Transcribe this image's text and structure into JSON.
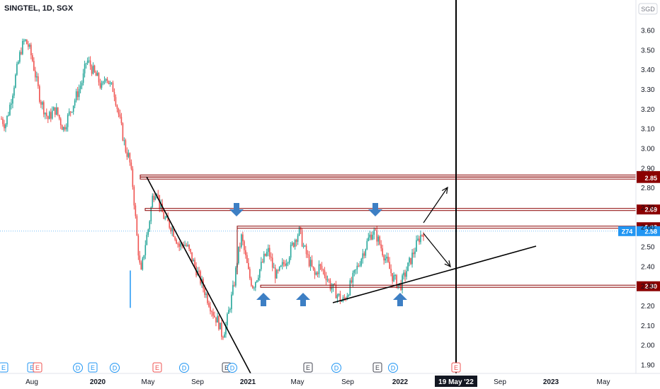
{
  "header": {
    "symbol": "SINGTEL, 1D, SGX",
    "currency": "SGD"
  },
  "colors": {
    "up": "#26a69a",
    "down": "#ef5350",
    "level": "#8b0000",
    "arrow": "#3d7fc4",
    "last": "#2196f3"
  },
  "chart_data": {
    "type": "candlestick",
    "title": "SINGTEL, 1D, SGX",
    "ylabel": "SGD",
    "ylim": [
      1.86,
      3.77
    ],
    "y_ticks": [
      3.6,
      3.5,
      3.4,
      3.3,
      3.2,
      3.1,
      3.0,
      2.9,
      2.8,
      2.7,
      2.6,
      2.5,
      2.4,
      2.3,
      2.2,
      2.1,
      2.0,
      1.9
    ],
    "y_tick_labels": [
      "3.60",
      "3.50",
      "3.40",
      "3.30",
      "3.20",
      "3.10",
      "3.00",
      "2.90",
      "2.80",
      "2.70",
      "2.60",
      "2.50",
      "2.40",
      "2.30",
      "2.20",
      "2.10",
      "2.00",
      "1.90"
    ],
    "x_ticks": [
      "Aug",
      "2020",
      "May",
      "Sep",
      "2021",
      "May",
      "Sep",
      "2022",
      "19 May '22",
      "Sep",
      "2023",
      "May"
    ],
    "x_range": [
      "2019-06",
      "2023-07"
    ],
    "closes": [
      3.15,
      3.12,
      3.2,
      3.3,
      3.4,
      3.5,
      3.55,
      3.52,
      3.45,
      3.35,
      3.25,
      3.2,
      3.15,
      3.18,
      3.2,
      3.15,
      3.1,
      3.15,
      3.2,
      3.25,
      3.3,
      3.35,
      3.45,
      3.42,
      3.38,
      3.35,
      3.3,
      3.38,
      3.32,
      3.3,
      3.2,
      3.1,
      3.0,
      2.95,
      2.8,
      2.55,
      2.35,
      2.5,
      2.6,
      2.75,
      2.8,
      2.7,
      2.65,
      2.62,
      2.6,
      2.55,
      2.5,
      2.52,
      2.5,
      2.45,
      2.4,
      2.35,
      2.3,
      2.25,
      2.2,
      2.15,
      2.12,
      2.05,
      2.1,
      2.2,
      2.3,
      2.45,
      2.55,
      2.45,
      2.35,
      2.3,
      2.35,
      2.4,
      2.45,
      2.48,
      2.4,
      2.35,
      2.38,
      2.42,
      2.45,
      2.5,
      2.55,
      2.58,
      2.5,
      2.45,
      2.4,
      2.35,
      2.4,
      2.38,
      2.35,
      2.3,
      2.28,
      2.25,
      2.22,
      2.25,
      2.3,
      2.35,
      2.4,
      2.45,
      2.5,
      2.55,
      2.58,
      2.55,
      2.5,
      2.45,
      2.4,
      2.35,
      2.32,
      2.3,
      2.35,
      2.4,
      2.45,
      2.5,
      2.55,
      2.58
    ],
    "price_levels": [
      {
        "value": 2.86,
        "label": "2.86"
      },
      {
        "value": 2.85,
        "label": "2.85"
      },
      {
        "value": 2.69,
        "label": "2.69"
      },
      {
        "value": 2.6,
        "label": "2.60"
      },
      {
        "value": 2.3,
        "label": "2.30"
      }
    ],
    "last_price": {
      "ticker": "Z74",
      "value": 2.58,
      "label": "2.58"
    },
    "event_markers": [
      "E",
      "E",
      "E",
      "D",
      "E",
      "D",
      "E",
      "D",
      "E",
      "D",
      "E",
      "D",
      "E",
      "D",
      "E"
    ],
    "vertical_marker": {
      "date_label": "19 May '22"
    },
    "annotations": {
      "down_arrows": 2,
      "up_arrows": 3,
      "trendlines": [
        "downtrend",
        "ascending support"
      ],
      "projection_arrows": [
        "up breakout",
        "down pullback"
      ]
    },
    "grid": false,
    "legend": "none"
  }
}
